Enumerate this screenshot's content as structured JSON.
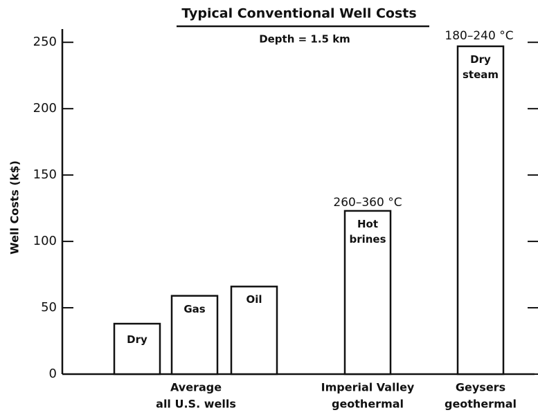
{
  "chart_data": {
    "type": "bar",
    "title": "Typical Conventional Well Costs",
    "subtitle": "Depth = 1.5 km",
    "y_label": "Well Costs (k$)",
    "categories": [
      "Dry",
      "Gas",
      "Oil",
      "Hot brines",
      "Dry steam"
    ],
    "values": [
      38,
      59,
      66,
      123,
      247
    ],
    "color": "#ffffff",
    "ylim": [
      0,
      260
    ],
    "yticks": [
      0,
      50,
      100,
      150,
      200,
      250
    ],
    "groups": [
      [
        "Average",
        "all U.S. wells"
      ],
      [
        "Imperial Valley",
        "geothermal"
      ],
      [
        "Geysers",
        "geothermal"
      ]
    ],
    "annotations": [
      "260–360 °C",
      "180–240 °C"
    ]
  }
}
